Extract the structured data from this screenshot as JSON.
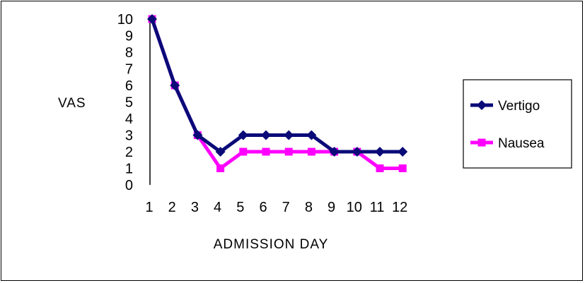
{
  "chart_data": {
    "type": "line",
    "title": "",
    "xlabel": "ADMISSION  DAY",
    "ylabel": "VAS",
    "categories": [
      1,
      2,
      3,
      4,
      5,
      6,
      7,
      8,
      9,
      10,
      11,
      12
    ],
    "x_tick_labels": [
      "1",
      "2",
      "3",
      "4",
      "5",
      "6",
      "7",
      "8",
      "9",
      "10",
      "11",
      "12"
    ],
    "y_tick_labels": [
      "0",
      "1",
      "2",
      "3",
      "4",
      "5",
      "6",
      "7",
      "8",
      "9",
      "10"
    ],
    "ylim": [
      0,
      10
    ],
    "grid": false,
    "legend_position": "right",
    "series": [
      {
        "name": "Vertigo",
        "color": "#0a0a78",
        "marker": "diamond",
        "values": [
          10,
          6,
          3,
          2,
          3,
          3,
          3,
          3,
          2,
          2,
          2,
          2
        ]
      },
      {
        "name": "Nausea",
        "color": "#ff00ff",
        "marker": "square",
        "values": [
          10,
          6,
          3,
          1,
          2,
          2,
          2,
          2,
          2,
          2,
          1,
          1
        ]
      }
    ]
  }
}
